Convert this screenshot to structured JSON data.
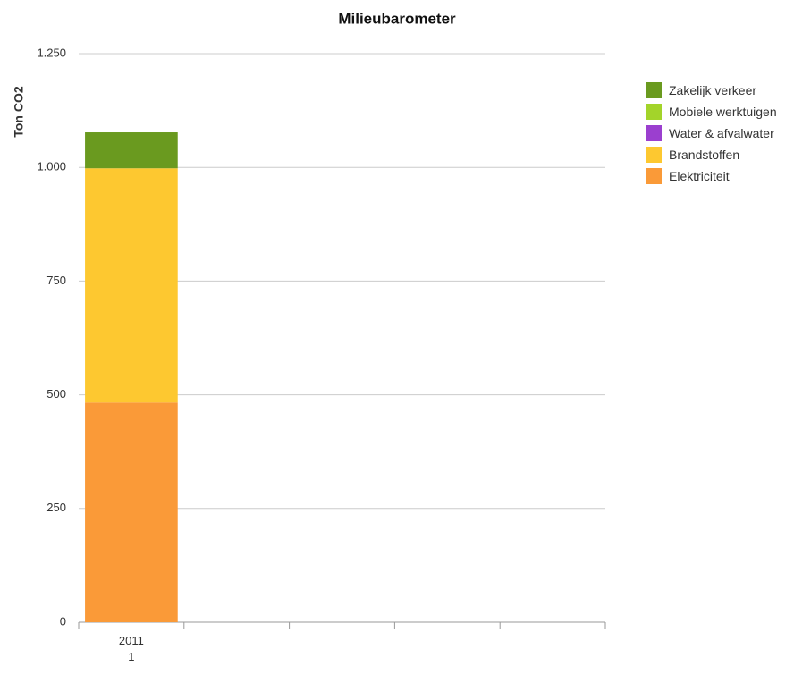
{
  "chart_data": {
    "type": "stacked_bar",
    "title": "Milieubarometer",
    "y_label": "Ton CO2",
    "categories": [
      "2011\n1",
      null,
      null,
      null,
      null
    ],
    "series": [
      {
        "name": "Elektriciteit",
        "color": "#fa9a38",
        "values": [
          483,
          null,
          null,
          null,
          null
        ]
      },
      {
        "name": "Brandstoffen",
        "color": "#fdc830",
        "values": [
          515,
          null,
          null,
          null,
          null
        ]
      },
      {
        "name": "Water & afvalwater",
        "color": "#9b3fcf",
        "values": [
          0,
          null,
          null,
          null,
          null
        ]
      },
      {
        "name": "Mobiele werktuigen",
        "color": "#a3d42a",
        "values": [
          0,
          null,
          null,
          null,
          null
        ]
      },
      {
        "name": "Zakelijk verkeer",
        "color": "#6a9a1f",
        "values": [
          79,
          null,
          null,
          null,
          null
        ]
      }
    ],
    "ylim": [
      0,
      1250
    ],
    "yticks": [
      0,
      250,
      500,
      750,
      {
        "value": 1000,
        "label": "1.000"
      },
      {
        "value": 1250,
        "label": "1.250"
      }
    ],
    "grid": true,
    "legend": "right"
  }
}
